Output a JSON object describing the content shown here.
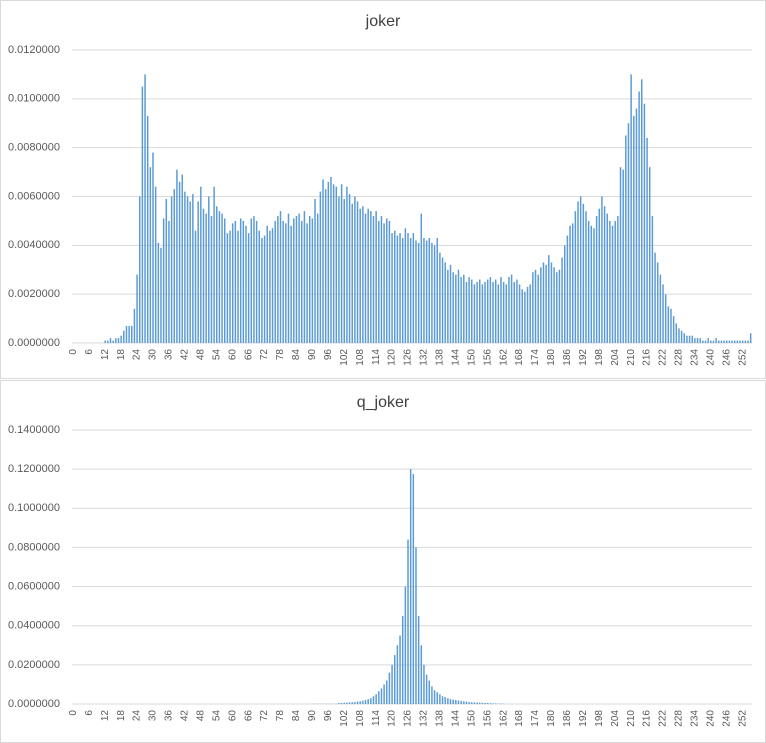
{
  "chart_data": [
    {
      "type": "bar",
      "title": "joker",
      "color": "#5b9bd5",
      "grid": true,
      "ylim": [
        0,
        0.012
      ],
      "yticks": [
        {
          "value": 0,
          "label": "0.0000000"
        },
        {
          "value": 0.002,
          "label": "0.0020000"
        },
        {
          "value": 0.004,
          "label": "0.0040000"
        },
        {
          "value": 0.006,
          "label": "0.0060000"
        },
        {
          "value": 0.008,
          "label": "0.0080000"
        },
        {
          "value": 0.01,
          "label": "0.0100000"
        },
        {
          "value": 0.012,
          "label": "0.0120000"
        }
      ],
      "categories": [
        0,
        null,
        null,
        null,
        null,
        null,
        6,
        null,
        null,
        null,
        null,
        null,
        12,
        null,
        null,
        null,
        null,
        null,
        18,
        null,
        null,
        null,
        null,
        null,
        24,
        null,
        null,
        null,
        null,
        null,
        30,
        null,
        null,
        null,
        null,
        null,
        36,
        null,
        null,
        null,
        null,
        null,
        42,
        null,
        null,
        null,
        null,
        null,
        48,
        null,
        null,
        null,
        null,
        null,
        54,
        null,
        null,
        null,
        null,
        null,
        60,
        null,
        null,
        null,
        null,
        null,
        66,
        null,
        null,
        null,
        null,
        null,
        72,
        null,
        null,
        null,
        null,
        null,
        78,
        null,
        null,
        null,
        null,
        null,
        84,
        null,
        null,
        null,
        null,
        null,
        90,
        null,
        null,
        null,
        null,
        null,
        96,
        null,
        null,
        null,
        null,
        null,
        102,
        null,
        null,
        null,
        null,
        null,
        108,
        null,
        null,
        null,
        null,
        null,
        114,
        null,
        null,
        null,
        null,
        null,
        120,
        null,
        null,
        null,
        null,
        null,
        126,
        null,
        null,
        null,
        null,
        null,
        132,
        null,
        null,
        null,
        null,
        null,
        138,
        null,
        null,
        null,
        null,
        null,
        144,
        null,
        null,
        null,
        null,
        null,
        150,
        null,
        null,
        null,
        null,
        null,
        156,
        null,
        null,
        null,
        null,
        null,
        162,
        null,
        null,
        null,
        null,
        null,
        168,
        null,
        null,
        null,
        null,
        null,
        174,
        null,
        null,
        null,
        null,
        null,
        180,
        null,
        null,
        null,
        null,
        null,
        186,
        null,
        null,
        null,
        null,
        null,
        192,
        null,
        null,
        null,
        null,
        null,
        198,
        null,
        null,
        null,
        null,
        null,
        204,
        null,
        null,
        null,
        null,
        null,
        210,
        null,
        null,
        null,
        null,
        null,
        216,
        null,
        null,
        null,
        null,
        null,
        222,
        null,
        null,
        null,
        null,
        null,
        228,
        null,
        null,
        null,
        null,
        null,
        234,
        null,
        null,
        null,
        null,
        null,
        240,
        null,
        null,
        null,
        null,
        null,
        246,
        null,
        null,
        null,
        null,
        null,
        252,
        null,
        null,
        null
      ],
      "values": [
        0,
        0,
        0,
        0,
        0,
        0,
        0,
        0,
        0,
        0,
        0,
        0,
        0.0001,
        0.0001,
        0.0002,
        0.0001,
        0.0002,
        0.0002,
        0.0003,
        0.0005,
        0.0007,
        0.0007,
        0.0007,
        0.0014,
        0.0028,
        0.006,
        0.0105,
        0.011,
        0.0093,
        0.0072,
        0.0078,
        0.0064,
        0.0041,
        0.0039,
        0.0051,
        0.0059,
        0.005,
        0.006,
        0.0063,
        0.0071,
        0.0066,
        0.0069,
        0.0062,
        0.006,
        0.0058,
        0.0061,
        0.0046,
        0.0058,
        0.0064,
        0.0055,
        0.0053,
        0.006,
        0.0052,
        0.0064,
        0.0056,
        0.0054,
        0.0053,
        0.0051,
        0.0045,
        0.0046,
        0.0049,
        0.005,
        0.0046,
        0.0051,
        0.005,
        0.0048,
        0.0045,
        0.0051,
        0.0052,
        0.005,
        0.0046,
        0.0043,
        0.0044,
        0.0048,
        0.0046,
        0.0047,
        0.005,
        0.0052,
        0.0054,
        0.005,
        0.0049,
        0.0053,
        0.0048,
        0.0051,
        0.0052,
        0.0053,
        0.005,
        0.0054,
        0.0049,
        0.0052,
        0.0051,
        0.0059,
        0.0053,
        0.0062,
        0.0067,
        0.0063,
        0.0066,
        0.0068,
        0.0065,
        0.0064,
        0.006,
        0.0065,
        0.0059,
        0.0064,
        0.0061,
        0.0057,
        0.006,
        0.0058,
        0.0055,
        0.0056,
        0.0053,
        0.0055,
        0.0054,
        0.0052,
        0.0054,
        0.005,
        0.0052,
        0.0049,
        0.0051,
        0.005,
        0.0045,
        0.0046,
        0.0044,
        0.0045,
        0.0043,
        0.0047,
        0.0045,
        0.0043,
        0.0045,
        0.0042,
        0.0041,
        0.0053,
        0.0043,
        0.0042,
        0.0043,
        0.0041,
        0.004,
        0.0043,
        0.0037,
        0.0035,
        0.0033,
        0.003,
        0.0032,
        0.0029,
        0.0028,
        0.003,
        0.0027,
        0.0028,
        0.0025,
        0.0027,
        0.0026,
        0.0024,
        0.0025,
        0.0026,
        0.0024,
        0.0025,
        0.0026,
        0.0027,
        0.0025,
        0.0026,
        0.0024,
        0.0027,
        0.0025,
        0.0024,
        0.0027,
        0.0028,
        0.0025,
        0.0026,
        0.0024,
        0.0022,
        0.0021,
        0.0023,
        0.0024,
        0.0029,
        0.003,
        0.0028,
        0.0031,
        0.0033,
        0.0032,
        0.0036,
        0.0033,
        0.0031,
        0.0029,
        0.003,
        0.0035,
        0.004,
        0.0044,
        0.0048,
        0.0049,
        0.0054,
        0.0058,
        0.006,
        0.0057,
        0.0054,
        0.005,
        0.0048,
        0.0047,
        0.0052,
        0.0055,
        0.006,
        0.0056,
        0.0053,
        0.005,
        0.0048,
        0.005,
        0.0052,
        0.0072,
        0.0071,
        0.0085,
        0.009,
        0.011,
        0.0093,
        0.0096,
        0.0103,
        0.0108,
        0.0098,
        0.0084,
        0.0072,
        0.0052,
        0.0037,
        0.0033,
        0.0028,
        0.0024,
        0.002,
        0.0015,
        0.0014,
        0.0011,
        0.0008,
        0.0006,
        0.0005,
        0.0004,
        0.0003,
        0.0003,
        0.0003,
        0.0002,
        0.0002,
        0.0002,
        0.0001,
        0.0001,
        0.0002,
        0.0001,
        0.0001,
        0.0002,
        0.0001,
        0.0001,
        0.0001,
        0.0001,
        0.0001,
        0.0001,
        0.0001,
        0.0001,
        0.0001,
        0.0001,
        0.0001,
        0.0001,
        0.0004
      ]
    },
    {
      "type": "bar",
      "title": "q_joker",
      "color": "#5b9bd5",
      "grid": true,
      "ylim": [
        0,
        0.14
      ],
      "yticks": [
        {
          "value": 0,
          "label": "0.0000000"
        },
        {
          "value": 0.02,
          "label": "0.0200000"
        },
        {
          "value": 0.04,
          "label": "0.0400000"
        },
        {
          "value": 0.06,
          "label": "0.0600000"
        },
        {
          "value": 0.08,
          "label": "0.0800000"
        },
        {
          "value": 0.1,
          "label": "0.1000000"
        },
        {
          "value": 0.12,
          "label": "0.1200000"
        },
        {
          "value": 0.14,
          "label": "0.1400000"
        }
      ],
      "categories": [
        0,
        null,
        null,
        null,
        null,
        null,
        6,
        null,
        null,
        null,
        null,
        null,
        12,
        null,
        null,
        null,
        null,
        null,
        18,
        null,
        null,
        null,
        null,
        null,
        24,
        null,
        null,
        null,
        null,
        null,
        30,
        null,
        null,
        null,
        null,
        null,
        36,
        null,
        null,
        null,
        null,
        null,
        42,
        null,
        null,
        null,
        null,
        null,
        48,
        null,
        null,
        null,
        null,
        null,
        54,
        null,
        null,
        null,
        null,
        null,
        60,
        null,
        null,
        null,
        null,
        null,
        66,
        null,
        null,
        null,
        null,
        null,
        72,
        null,
        null,
        null,
        null,
        null,
        78,
        null,
        null,
        null,
        null,
        null,
        84,
        null,
        null,
        null,
        null,
        null,
        90,
        null,
        null,
        null,
        null,
        null,
        96,
        null,
        null,
        null,
        null,
        null,
        102,
        null,
        null,
        null,
        null,
        null,
        108,
        null,
        null,
        null,
        null,
        null,
        114,
        null,
        null,
        null,
        null,
        null,
        120,
        null,
        null,
        null,
        null,
        null,
        126,
        null,
        null,
        null,
        null,
        null,
        132,
        null,
        null,
        null,
        null,
        null,
        138,
        null,
        null,
        null,
        null,
        null,
        144,
        null,
        null,
        null,
        null,
        null,
        150,
        null,
        null,
        null,
        null,
        null,
        156,
        null,
        null,
        null,
        null,
        null,
        162,
        null,
        null,
        null,
        null,
        null,
        168,
        null,
        null,
        null,
        null,
        null,
        174,
        null,
        null,
        null,
        null,
        null,
        180,
        null,
        null,
        null,
        null,
        null,
        186,
        null,
        null,
        null,
        null,
        null,
        192,
        null,
        null,
        null,
        null,
        null,
        198,
        null,
        null,
        null,
        null,
        null,
        204,
        null,
        null,
        null,
        null,
        null,
        210,
        null,
        null,
        null,
        null,
        null,
        216,
        null,
        null,
        null,
        null,
        null,
        222,
        null,
        null,
        null,
        null,
        null,
        228,
        null,
        null,
        null,
        null,
        null,
        234,
        null,
        null,
        null,
        null,
        null,
        240,
        null,
        null,
        null,
        null,
        null,
        246,
        null,
        null,
        null,
        null,
        null,
        252,
        null,
        null,
        null
      ],
      "values": [
        0,
        0,
        0,
        0,
        0,
        0,
        0,
        0,
        0,
        0,
        0,
        0,
        0,
        0,
        0,
        0,
        0,
        0,
        0,
        0,
        0,
        0,
        0,
        0,
        0,
        0,
        0,
        0,
        0,
        0,
        0,
        0,
        0,
        0,
        0,
        0,
        0,
        0,
        0,
        0,
        0,
        0,
        0,
        0,
        0,
        0,
        0,
        0,
        0,
        0,
        0,
        0,
        0,
        0,
        0,
        0,
        0,
        0,
        0,
        0,
        0,
        0,
        0,
        0,
        0,
        0,
        0,
        0,
        0,
        0,
        0,
        0,
        0,
        0,
        0,
        0,
        0,
        0,
        0,
        0,
        0,
        0,
        0,
        0,
        0,
        0,
        0,
        0,
        0,
        0,
        0.0001,
        0.0001,
        0.0001,
        0.0001,
        0.0001,
        0.0001,
        0.0001,
        0.0001,
        0.0001,
        0.0001,
        0.0005,
        0.0005,
        0.0006,
        0.0007,
        0.0008,
        0.0009,
        0.001,
        0.0012,
        0.0014,
        0.0017,
        0.002,
        0.0025,
        0.003,
        0.004,
        0.005,
        0.0065,
        0.008,
        0.01,
        0.012,
        0.016,
        0.02,
        0.025,
        0.03,
        0.035,
        0.045,
        0.06,
        0.084,
        0.12,
        0.1175,
        0.08,
        0.045,
        0.03,
        0.02,
        0.015,
        0.012,
        0.009,
        0.007,
        0.006,
        0.005,
        0.004,
        0.0035,
        0.003,
        0.0025,
        0.0022,
        0.002,
        0.0018,
        0.0016,
        0.0014,
        0.0012,
        0.001,
        0.0009,
        0.0008,
        0.0008,
        0.0007,
        0.0006,
        0.0005,
        0.0005,
        0.0004,
        0.0003,
        0.0003,
        0.0002,
        0.0002,
        0.0002,
        0,
        0,
        0,
        0,
        0,
        0,
        0,
        0,
        0,
        0,
        0,
        0,
        0,
        0,
        0,
        0,
        0,
        0,
        0,
        0,
        0,
        0,
        0,
        0,
        0,
        0,
        0,
        0,
        0,
        0,
        0,
        0,
        0,
        0,
        0,
        0,
        0,
        0,
        0,
        0,
        0,
        0,
        0,
        0,
        0,
        0,
        0,
        0,
        0,
        0,
        0,
        0,
        0,
        0,
        0,
        0,
        0,
        0,
        0,
        0,
        0,
        0,
        0,
        0,
        0,
        0,
        0,
        0,
        0,
        0,
        0,
        0,
        0,
        0,
        0,
        0,
        0,
        0,
        0,
        0,
        0,
        0,
        0,
        0,
        0,
        0,
        0,
        0,
        0,
        0,
        0,
        0,
        0
      ]
    }
  ]
}
